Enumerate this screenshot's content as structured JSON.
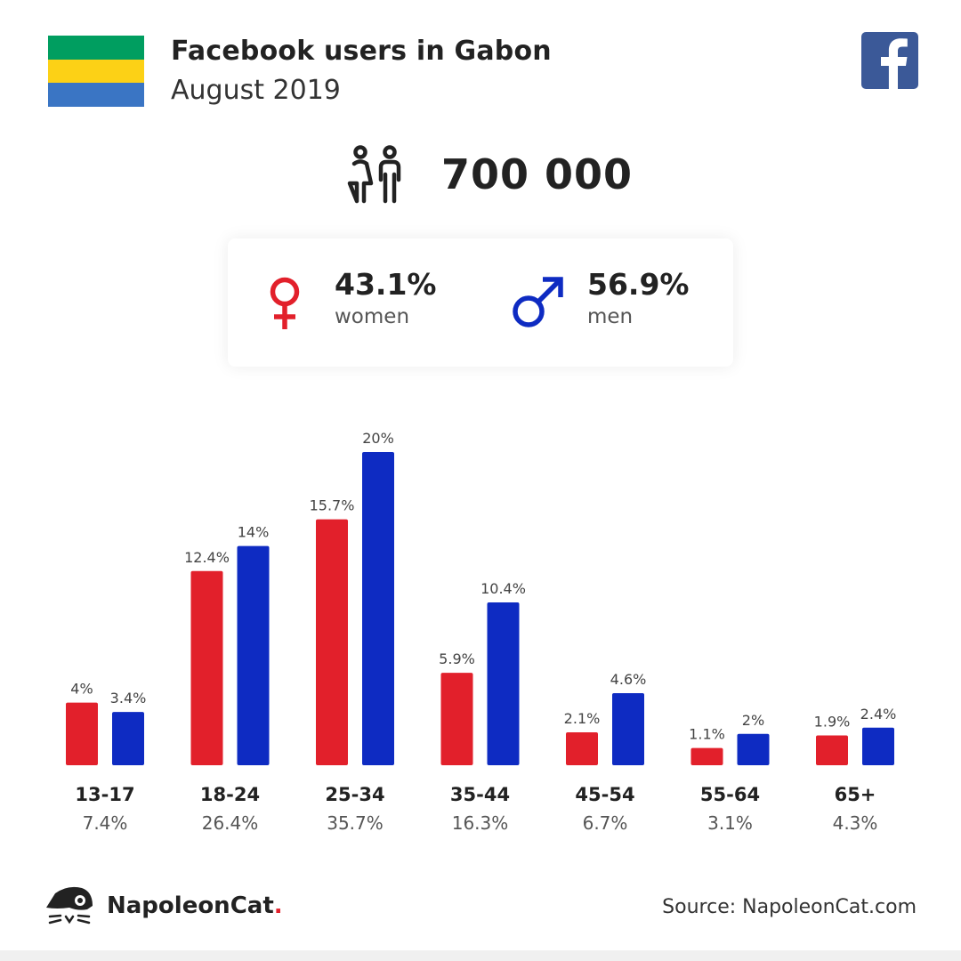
{
  "header": {
    "title": "Facebook users in Gabon",
    "subtitle": "August 2019",
    "flag_colors": [
      "#009e60",
      "#fcd116",
      "#3a75c4"
    ],
    "facebook_icon": "facebook-logo-icon"
  },
  "total": {
    "value": "700 000",
    "icon": "users-icon"
  },
  "gender": {
    "women_pct": "43.1%",
    "women_label": "women",
    "men_pct": "56.9%",
    "men_label": "men",
    "women_color": "#e2202b",
    "men_color": "#0e2bc2"
  },
  "chart_data": {
    "type": "bar",
    "categories": [
      "13-17",
      "18-24",
      "25-34",
      "35-44",
      "45-54",
      "55-64",
      "65+"
    ],
    "category_totals": [
      "7.4%",
      "26.4%",
      "35.7%",
      "16.3%",
      "6.7%",
      "3.1%",
      "4.3%"
    ],
    "series": [
      {
        "values": [
          4,
          12.4,
          15.7,
          5.9,
          2.1,
          1.1,
          1.9
        ],
        "labels": [
          "4%",
          "12.4%",
          "15.7%",
          "5.9%",
          "2.1%",
          "1.1%",
          "1.9%"
        ],
        "color": "#e2202b"
      },
      {
        "values": [
          3.4,
          14,
          20,
          10.4,
          4.6,
          2,
          2.4
        ],
        "labels": [
          "3.4%",
          "14%",
          "20%",
          "10.4%",
          "4.6%",
          "2%",
          "2.4%"
        ],
        "color": "#0e2bc2"
      }
    ],
    "ylim": [
      0,
      20
    ],
    "grid": false
  },
  "footer": {
    "brand": "NapoleonCat",
    "brand_dot": ".",
    "source": "Source: NapoleonCat.com",
    "logo_icon": "napoleoncat-logo-icon"
  }
}
